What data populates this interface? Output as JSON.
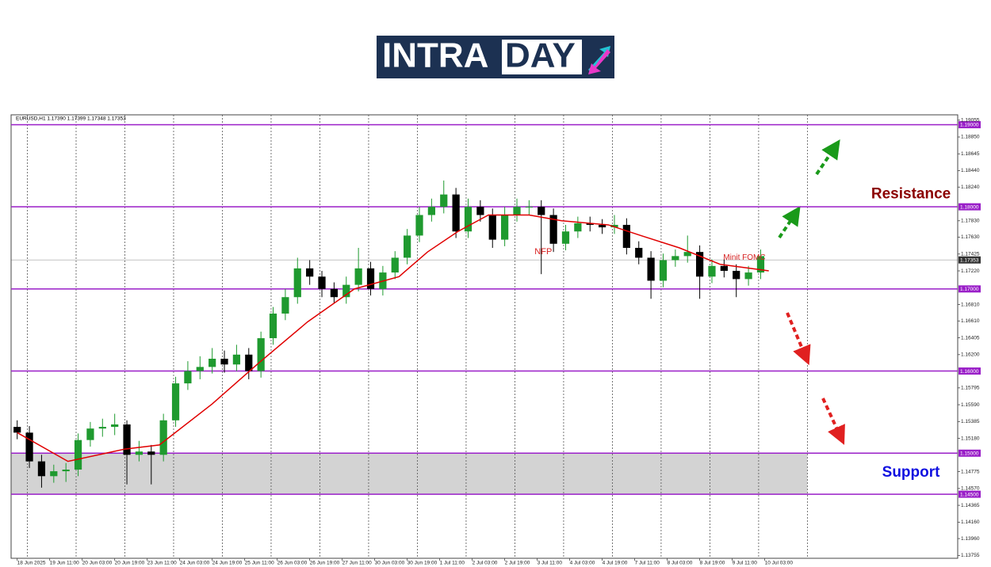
{
  "logo": {
    "left": "INTRA",
    "right": "DAY"
  },
  "chart_data": {
    "type": "candlestick",
    "header": "EURUSD,H1  1.17390 1.17399 1.17348 1.17353",
    "xlim": [
      -3,
      463
    ],
    "ylim": [
      1.1372,
      1.1912
    ],
    "xticks": [
      {
        "value": 0,
        "label": "18 Jun 2025"
      },
      {
        "value": 16,
        "label": "19 Jun 11:00"
      },
      {
        "value": 32,
        "label": "20 Jun 03:00"
      },
      {
        "value": 48,
        "label": "20 Jun 19:00"
      },
      {
        "value": 64,
        "label": "23 Jun 11:00"
      },
      {
        "value": 80,
        "label": "24 Jun 03:00"
      },
      {
        "value": 96,
        "label": "24 Jun 19:00"
      },
      {
        "value": 112,
        "label": "25 Jun 11:00"
      },
      {
        "value": 128,
        "label": "26 Jun 03:00"
      },
      {
        "value": 144,
        "label": "26 Jun 19:00"
      },
      {
        "value": 160,
        "label": "27 Jun 11:00"
      },
      {
        "value": 176,
        "label": "30 Jun 03:00"
      },
      {
        "value": 192,
        "label": "30 Jun 19:00"
      },
      {
        "value": 208,
        "label": "1 Jul 11:00"
      },
      {
        "value": 224,
        "label": "2 Jul 03:00"
      },
      {
        "value": 240,
        "label": "2 Jul 19:00"
      },
      {
        "value": 256,
        "label": "3 Jul 11:00"
      },
      {
        "value": 272,
        "label": "4 Jul 03:00"
      },
      {
        "value": 288,
        "label": "4 Jul 19:00"
      },
      {
        "value": 304,
        "label": "7 Jul 11:00"
      },
      {
        "value": 320,
        "label": "8 Jul 03:00"
      },
      {
        "value": 336,
        "label": "8 Jul 19:00"
      },
      {
        "value": 352,
        "label": "9 Jul 11:00"
      },
      {
        "value": 368,
        "label": "10 Jul 03:00"
      }
    ],
    "xgrid": [
      5,
      29,
      53,
      77,
      101,
      125,
      149,
      173,
      197,
      221,
      245,
      269,
      293,
      317,
      341,
      365,
      389
    ],
    "yticks": [
      1.19055,
      {
        "value": 1.1885,
        "label": "1.18850"
      },
      1.18645,
      {
        "value": 1.1844,
        "label": "1.18440"
      },
      {
        "value": 1.1824,
        "label": "1.18240"
      },
      {
        "value": 1.1783,
        "label": "1.17830"
      },
      {
        "value": 1.1763,
        "label": "1.17630"
      },
      1.17425,
      {
        "value": 1.1722,
        "label": "1.17220"
      },
      {
        "value": 1.1681,
        "label": "1.16810"
      },
      {
        "value": 1.1661,
        "label": "1.16610"
      },
      1.16405,
      {
        "value": 1.162,
        "label": "1.16200"
      },
      1.15795,
      {
        "value": 1.1559,
        "label": "1.15590"
      },
      1.15385,
      {
        "value": 1.1518,
        "label": "1.15180"
      },
      1.14775,
      {
        "value": 1.1457,
        "label": "1.14570"
      },
      1.14365,
      {
        "value": 1.1416,
        "label": "1.14160"
      },
      {
        "value": 1.1396,
        "label": "1.13960"
      },
      1.13755
    ],
    "levels": [
      {
        "value": 1.19,
        "label": "1.19000"
      },
      {
        "value": 1.18,
        "label": "1.18000"
      },
      {
        "value": 1.17,
        "label": "1.17000"
      },
      {
        "value": 1.16,
        "label": "1.16000"
      },
      {
        "value": 1.15,
        "label": "1.15000"
      },
      {
        "value": 1.145,
        "label": "1.14500"
      }
    ],
    "level_color": "#9a1fc8",
    "last_price": 1.17353,
    "support_zone": [
      1.145,
      1.15
    ],
    "up_color": "#1f9a2f",
    "down_color": "#000000",
    "candles": [
      [
        0,
        1.1532,
        1.154,
        1.1517,
        1.1525
      ],
      [
        6,
        1.1525,
        1.1533,
        1.1482,
        1.149
      ],
      [
        12,
        1.149,
        1.1498,
        1.1458,
        1.1472
      ],
      [
        18,
        1.1472,
        1.1486,
        1.1464,
        1.1478
      ],
      [
        24,
        1.1478,
        1.1488,
        1.1465,
        1.148
      ],
      [
        30,
        1.148,
        1.1524,
        1.1472,
        1.1516
      ],
      [
        36,
        1.1516,
        1.1538,
        1.1508,
        1.153
      ],
      [
        42,
        1.153,
        1.1542,
        1.152,
        1.1532
      ],
      [
        48,
        1.1532,
        1.1548,
        1.1522,
        1.1535
      ],
      [
        54,
        1.1535,
        1.154,
        1.1462,
        1.1498
      ],
      [
        60,
        1.1498,
        1.1515,
        1.149,
        1.1502
      ],
      [
        66,
        1.1502,
        1.151,
        1.1462,
        1.1498
      ],
      [
        72,
        1.1498,
        1.1548,
        1.149,
        1.154
      ],
      [
        78,
        1.154,
        1.1593,
        1.1532,
        1.1585
      ],
      [
        84,
        1.1585,
        1.1612,
        1.1577,
        1.16
      ],
      [
        90,
        1.16,
        1.1618,
        1.159,
        1.1605
      ],
      [
        96,
        1.1605,
        1.1628,
        1.1597,
        1.1615
      ],
      [
        102,
        1.1615,
        1.1625,
        1.1598,
        1.1608
      ],
      [
        108,
        1.1608,
        1.1632,
        1.16,
        1.162
      ],
      [
        114,
        1.162,
        1.1628,
        1.159,
        1.16
      ],
      [
        120,
        1.16,
        1.1648,
        1.1592,
        1.164
      ],
      [
        126,
        1.164,
        1.1678,
        1.1632,
        1.167
      ],
      [
        132,
        1.167,
        1.17,
        1.1662,
        1.169
      ],
      [
        138,
        1.169,
        1.1738,
        1.1682,
        1.1725
      ],
      [
        144,
        1.1725,
        1.1735,
        1.1705,
        1.1715
      ],
      [
        150,
        1.1715,
        1.1722,
        1.169,
        1.17
      ],
      [
        156,
        1.17,
        1.1708,
        1.1682,
        1.169
      ],
      [
        162,
        1.169,
        1.1715,
        1.1682,
        1.1705
      ],
      [
        168,
        1.1705,
        1.175,
        1.1697,
        1.1725
      ],
      [
        174,
        1.1725,
        1.1733,
        1.1692,
        1.17
      ],
      [
        180,
        1.17,
        1.1728,
        1.1692,
        1.172
      ],
      [
        186,
        1.172,
        1.1746,
        1.1712,
        1.1738
      ],
      [
        192,
        1.1738,
        1.1773,
        1.173,
        1.1765
      ],
      [
        198,
        1.1765,
        1.18,
        1.1757,
        1.179
      ],
      [
        204,
        1.179,
        1.181,
        1.1782,
        1.18
      ],
      [
        210,
        1.18,
        1.1832,
        1.1792,
        1.1815
      ],
      [
        216,
        1.1815,
        1.1823,
        1.1762,
        1.177
      ],
      [
        222,
        1.177,
        1.181,
        1.1762,
        1.18
      ],
      [
        228,
        1.18,
        1.1808,
        1.1782,
        1.179
      ],
      [
        234,
        1.179,
        1.1798,
        1.175,
        1.176
      ],
      [
        240,
        1.176,
        1.18,
        1.1752,
        1.179
      ],
      [
        246,
        1.179,
        1.181,
        1.1782,
        1.18
      ],
      [
        252,
        1.18,
        1.1808,
        1.179,
        1.18
      ],
      [
        258,
        1.18,
        1.1808,
        1.1718,
        1.179
      ],
      [
        264,
        1.179,
        1.1798,
        1.1745,
        1.1755
      ],
      [
        270,
        1.1755,
        1.1778,
        1.1747,
        1.177
      ],
      [
        276,
        1.177,
        1.1788,
        1.1762,
        1.178
      ],
      [
        282,
        1.178,
        1.1788,
        1.177,
        1.1778
      ],
      [
        288,
        1.1778,
        1.1785,
        1.1767,
        1.1775
      ],
      [
        294,
        1.1775,
        1.179,
        1.1767,
        1.1778
      ],
      [
        300,
        1.1778,
        1.1786,
        1.1742,
        1.175
      ],
      [
        306,
        1.175,
        1.1758,
        1.173,
        1.1738
      ],
      [
        312,
        1.1738,
        1.1746,
        1.1688,
        1.171
      ],
      [
        318,
        1.171,
        1.1743,
        1.1702,
        1.1735
      ],
      [
        324,
        1.1735,
        1.1748,
        1.1727,
        1.174
      ],
      [
        330,
        1.174,
        1.1765,
        1.1732,
        1.1745
      ],
      [
        336,
        1.1745,
        1.1753,
        1.1688,
        1.1715
      ],
      [
        342,
        1.1715,
        1.1736,
        1.1707,
        1.1728
      ],
      [
        348,
        1.1728,
        1.1736,
        1.1714,
        1.1722
      ],
      [
        354,
        1.1722,
        1.173,
        1.169,
        1.1712
      ],
      [
        360,
        1.1712,
        1.1728,
        1.1704,
        1.172
      ],
      [
        366,
        1.172,
        1.1748,
        1.1712,
        1.174
      ]
    ],
    "ma": {
      "color": "#e00000",
      "x": [
        0,
        25,
        53,
        70,
        96,
        119,
        143,
        166,
        188,
        202,
        217,
        232,
        252,
        268,
        291,
        307,
        326,
        346,
        370
      ],
      "values": [
        1.1525,
        1.149,
        1.1505,
        1.151,
        1.156,
        1.161,
        1.166,
        1.17,
        1.1715,
        1.1745,
        1.177,
        1.179,
        1.179,
        1.1783,
        1.1778,
        1.1765,
        1.175,
        1.173,
        1.1722
      ]
    },
    "annotations": [
      {
        "text": "NFP",
        "x": 259,
        "y": 1.1745,
        "color": "#d62020",
        "size": 11
      },
      {
        "text": "Minit FOMC",
        "x": 358,
        "y": 1.1738,
        "color": "#d62020",
        "size": 10
      },
      {
        "text": "Resistance",
        "x": 440,
        "y": 1.1815,
        "color": "#8b0000",
        "size": 19
      },
      {
        "text": "Support",
        "x": 440,
        "y": 1.1476,
        "color": "#1010e0",
        "size": 19
      }
    ]
  }
}
